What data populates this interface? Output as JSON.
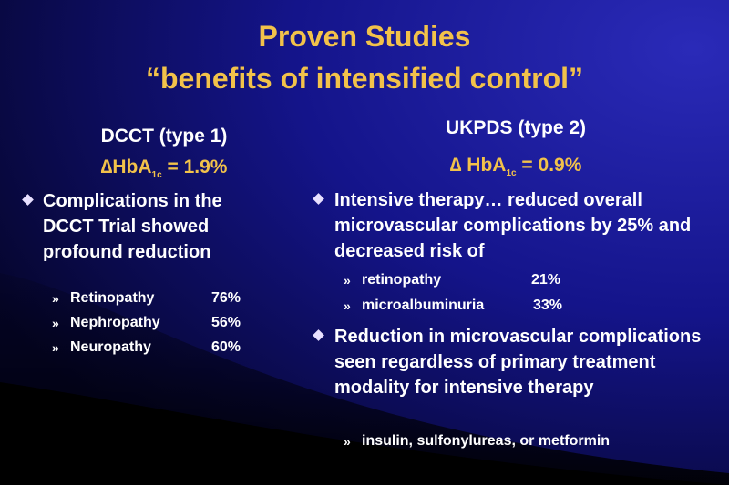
{
  "title": {
    "line1": "Proven Studies",
    "line2": "“benefits of intensified control”"
  },
  "left": {
    "heading": "DCCT (type 1)",
    "delta": {
      "prefix": "∆HbA",
      "subscript": "1c",
      "value": " = 1.9%"
    },
    "bullets": [
      {
        "text": "Complications in the DCCT Trial showed profound reduction",
        "items": [
          {
            "label": "Retinopathy",
            "value": "76%"
          },
          {
            "label": "Nephropathy",
            "value": "56%"
          },
          {
            "label": "Neuropathy",
            "value": "60%"
          }
        ]
      }
    ]
  },
  "right": {
    "heading": "UKPDS (type 2)",
    "delta": {
      "prefix": "∆ HbA",
      "subscript": "1c",
      "value": " = 0.9%"
    },
    "bullets": [
      {
        "text": "Intensive therapy… reduced overall microvascular complications by 25% and decreased risk of",
        "items": [
          {
            "label": "retinopathy",
            "value": "21%"
          },
          {
            "label": "microalbuminuria",
            "value": "33%"
          }
        ]
      },
      {
        "text": "Reduction in microvascular complications seen regardless of primary treatment modality for intensive therapy",
        "items": [
          {
            "label": "insulin, sulfonylureas, or metformin"
          }
        ]
      }
    ]
  }
}
